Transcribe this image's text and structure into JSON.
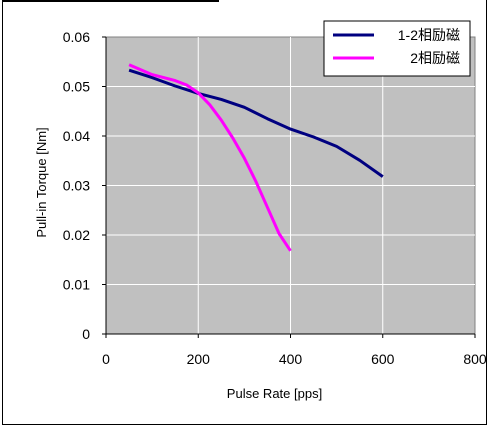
{
  "chart_data": {
    "type": "line",
    "title": "",
    "xlabel": "Pulse Rate [pps]",
    "ylabel": "Pull-in Torque [Nm]",
    "xlim": [
      0,
      800
    ],
    "ylim": [
      0,
      0.06
    ],
    "xticks": [
      0,
      200,
      400,
      600,
      800
    ],
    "yticks": [
      0,
      0.01,
      0.02,
      0.03,
      0.04,
      0.05,
      0.06
    ],
    "xtick_labels": [
      "0",
      "200",
      "400",
      "600",
      "800"
    ],
    "ytick_labels": [
      "0",
      "0.01",
      "0.02",
      "0.03",
      "0.04",
      "0.05",
      "0.06"
    ],
    "grid": true,
    "legend_position": "top-right",
    "plot_background": "#c0c0c0",
    "series": [
      {
        "name": "1-2相励磁",
        "color": "#000080",
        "x": [
          50,
          100,
          150,
          200,
          250,
          300,
          350,
          400,
          450,
          500,
          550,
          600
        ],
        "y": [
          0.0533,
          0.0518,
          0.0501,
          0.0486,
          0.0474,
          0.0458,
          0.0435,
          0.0414,
          0.0398,
          0.0379,
          0.0351,
          0.0318
        ]
      },
      {
        "name": "2相励磁",
        "color": "#ff00ff",
        "x": [
          50,
          100,
          150,
          175,
          200,
          225,
          250,
          275,
          300,
          325,
          350,
          375,
          400
        ],
        "y": [
          0.0544,
          0.0524,
          0.0512,
          0.0503,
          0.0487,
          0.0463,
          0.0432,
          0.0396,
          0.0355,
          0.0308,
          0.0256,
          0.0203,
          0.0168
        ]
      }
    ]
  }
}
